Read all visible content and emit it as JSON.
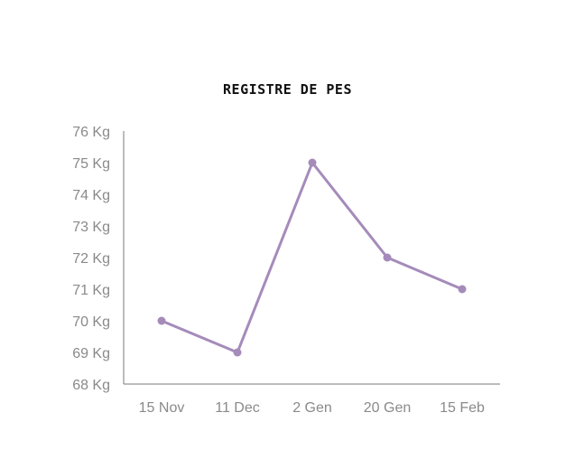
{
  "chart_data": {
    "type": "line",
    "title": "REGISTRE DE PES",
    "xlabel": "",
    "ylabel": "",
    "categories": [
      "15 Nov",
      "11 Dec",
      "2 Gen",
      "20 Gen",
      "15 Feb"
    ],
    "series": [
      {
        "values": [
          70,
          69,
          75,
          72,
          71
        ]
      }
    ],
    "ylim": [
      68,
      76
    ],
    "yticks": [
      "68 Kg",
      "69 Kg",
      "70 Kg",
      "71 Kg",
      "72 Kg",
      "73 Kg",
      "74 Kg",
      "75 Kg",
      "76 Kg"
    ],
    "grid": false,
    "line_color": "#a58bba",
    "axis_color": "#7a7a7a",
    "label_color": "#8a8a8a"
  }
}
